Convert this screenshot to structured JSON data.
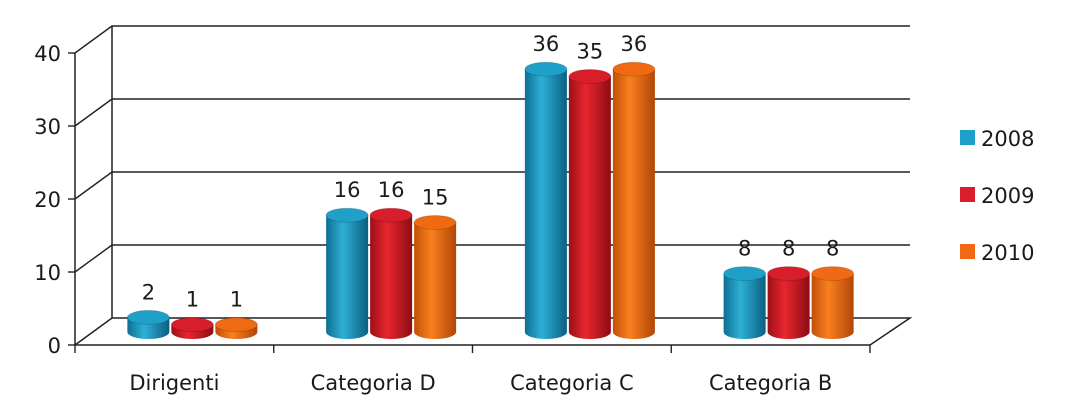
{
  "chart_data": {
    "type": "bar",
    "categories": [
      "Dirigenti",
      "Categoria D",
      "Categoria C",
      "Categoria B"
    ],
    "series": [
      {
        "name": "2008",
        "values": [
          2,
          16,
          36,
          8
        ],
        "color": "#1fa0c8"
      },
      {
        "name": "2009",
        "values": [
          1,
          16,
          35,
          8
        ],
        "color": "#d81e2a"
      },
      {
        "name": "2010",
        "values": [
          1,
          15,
          36,
          8
        ],
        "color": "#f06a14"
      }
    ],
    "data_labels": [
      [
        "2",
        "16",
        "36",
        "8"
      ],
      [
        "1",
        "16",
        "35",
        "8"
      ],
      [
        "1",
        "15",
        "36",
        "8"
      ]
    ],
    "ylim": [
      0,
      40
    ],
    "yticks": [
      "0",
      "10",
      "20",
      "30",
      "40"
    ],
    "title": "",
    "xlabel": "",
    "ylabel": "",
    "grid": true,
    "legend_position": "right",
    "style": "3d-cylinder"
  }
}
